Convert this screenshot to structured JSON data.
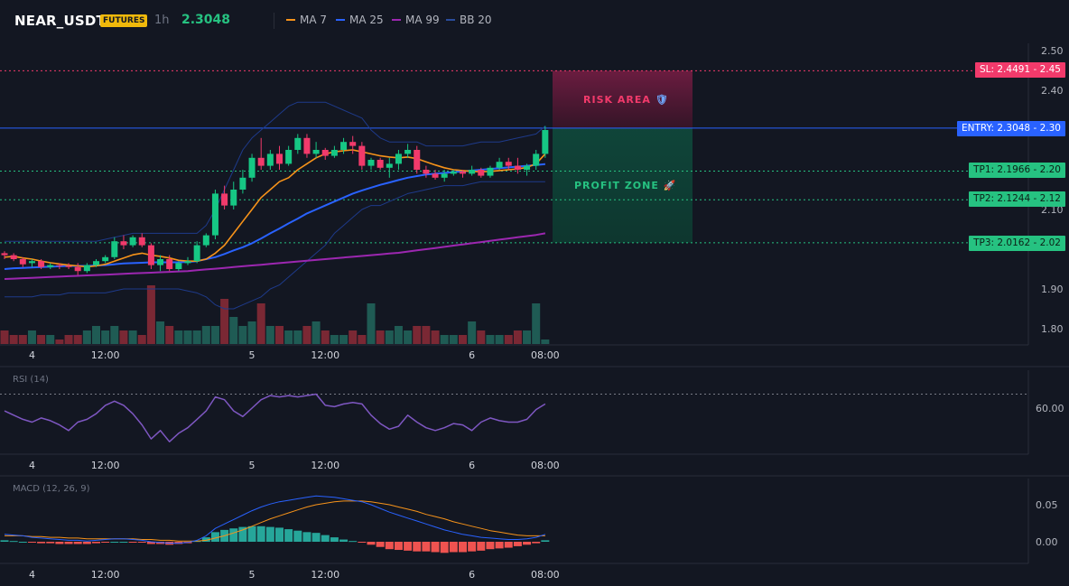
{
  "header": {
    "symbol": "NEAR_USDT",
    "badge": "FUTURES",
    "timeframe": "1h",
    "last_price": "2.3048",
    "indicators": [
      {
        "label": "MA 7",
        "color": "#f7931a"
      },
      {
        "label": "MA 25",
        "color": "#2962ff"
      },
      {
        "label": "MA 99",
        "color": "#9c27b0"
      },
      {
        "label": "BB 20",
        "color": "#1e3a8a"
      }
    ]
  },
  "levels": {
    "sl": {
      "label": "SL: 2.4491",
      "price": "2.45",
      "value": 2.4491,
      "color": "#f23a6b"
    },
    "entry": {
      "label": "ENTRY: 2.3048",
      "price": "2.30",
      "value": 2.3048,
      "color": "#2962ff"
    },
    "tp1": {
      "label": "TP1: 2.1966",
      "price": "2.20",
      "value": 2.1966,
      "color": "#26c281"
    },
    "tp2": {
      "label": "TP2: 2.1244",
      "price": "2.12",
      "value": 2.1244,
      "color": "#26c281"
    },
    "tp3": {
      "label": "TP3: 2.0162",
      "price": "2.02",
      "value": 2.0162,
      "color": "#26c281"
    }
  },
  "zones": {
    "risk": {
      "label": "RISK AREA",
      "icon": "shield-icon"
    },
    "profit": {
      "label": "PROFIT ZONE",
      "icon": "rocket-icon"
    }
  },
  "price_axis": {
    "ticks": [
      {
        "label": "2.50",
        "value": 2.5
      },
      {
        "label": "2.40",
        "value": 2.4
      },
      {
        "label": "2.10",
        "value": 2.1
      },
      {
        "label": "1.90",
        "value": 1.9
      },
      {
        "label": "1.80",
        "value": 1.8
      }
    ]
  },
  "time_axis": {
    "ticks": [
      {
        "label": "4",
        "hour": 3
      },
      {
        "label": "12:00",
        "hour": 11
      },
      {
        "label": "5",
        "hour": 27
      },
      {
        "label": "12:00",
        "hour": 35
      },
      {
        "label": "6",
        "hour": 51
      },
      {
        "label": "08:00",
        "hour": 59
      }
    ]
  },
  "rsi": {
    "title": "RSI (14)",
    "tick": {
      "label": "60.00",
      "value": 60
    },
    "overbought": 70
  },
  "macd": {
    "title": "MACD (12, 26, 9)",
    "ticks": [
      {
        "label": "0.05",
        "value": 0.05
      },
      {
        "label": "0.00",
        "value": 0
      }
    ]
  },
  "chart_data": {
    "type": "candlestick",
    "x_unit": "hour index",
    "candles": [
      [
        0,
        1.99,
        1.995,
        1.975,
        1.985
      ],
      [
        1,
        1.985,
        1.99,
        1.97,
        1.975
      ],
      [
        2,
        1.975,
        1.98,
        1.955,
        1.962
      ],
      [
        3,
        1.965,
        1.975,
        1.955,
        1.97
      ],
      [
        4,
        1.97,
        1.975,
        1.95,
        1.955
      ],
      [
        5,
        1.955,
        1.965,
        1.95,
        1.96
      ],
      [
        6,
        1.96,
        1.965,
        1.95,
        1.958
      ],
      [
        7,
        1.958,
        1.965,
        1.95,
        1.955
      ],
      [
        8,
        1.955,
        1.965,
        1.935,
        1.945
      ],
      [
        9,
        1.945,
        1.965,
        1.94,
        1.96
      ],
      [
        10,
        1.96,
        1.975,
        1.955,
        1.97
      ],
      [
        11,
        1.97,
        1.985,
        1.965,
        1.98
      ],
      [
        12,
        1.98,
        2.03,
        1.975,
        2.02
      ],
      [
        13,
        2.02,
        2.035,
        2.0,
        2.01
      ],
      [
        14,
        2.01,
        2.035,
        2.005,
        2.03
      ],
      [
        15,
        2.03,
        2.04,
        2.005,
        2.01
      ],
      [
        16,
        2.01,
        2.015,
        1.95,
        1.96
      ],
      [
        17,
        1.96,
        1.985,
        1.945,
        1.975
      ],
      [
        18,
        1.975,
        1.985,
        1.945,
        1.95
      ],
      [
        19,
        1.95,
        1.97,
        1.945,
        1.965
      ],
      [
        20,
        1.965,
        1.98,
        1.96,
        1.97
      ],
      [
        21,
        1.97,
        2.02,
        1.965,
        2.01
      ],
      [
        22,
        2.01,
        2.04,
        2.005,
        2.035
      ],
      [
        23,
        2.035,
        2.15,
        2.025,
        2.14
      ],
      [
        24,
        2.14,
        2.16,
        2.1,
        2.11
      ],
      [
        25,
        2.11,
        2.17,
        2.1,
        2.15
      ],
      [
        26,
        2.15,
        2.2,
        2.14,
        2.18
      ],
      [
        27,
        2.18,
        2.24,
        2.17,
        2.23
      ],
      [
        28,
        2.23,
        2.28,
        2.2,
        2.21
      ],
      [
        29,
        2.21,
        2.25,
        2.2,
        2.24
      ],
      [
        30,
        2.24,
        2.26,
        2.2,
        2.215
      ],
      [
        31,
        2.215,
        2.26,
        2.21,
        2.25
      ],
      [
        32,
        2.25,
        2.29,
        2.24,
        2.28
      ],
      [
        33,
        2.28,
        2.29,
        2.23,
        2.24
      ],
      [
        34,
        2.24,
        2.27,
        2.23,
        2.25
      ],
      [
        35,
        2.25,
        2.255,
        2.225,
        2.235
      ],
      [
        36,
        2.235,
        2.26,
        2.23,
        2.25
      ],
      [
        37,
        2.25,
        2.28,
        2.24,
        2.27
      ],
      [
        38,
        2.27,
        2.285,
        2.24,
        2.26
      ],
      [
        39,
        2.26,
        2.27,
        2.2,
        2.21
      ],
      [
        40,
        2.21,
        2.23,
        2.2,
        2.225
      ],
      [
        41,
        2.225,
        2.23,
        2.2,
        2.205
      ],
      [
        42,
        2.205,
        2.23,
        2.18,
        2.215
      ],
      [
        43,
        2.215,
        2.25,
        2.2,
        2.24
      ],
      [
        44,
        2.24,
        2.265,
        2.23,
        2.25
      ],
      [
        45,
        2.25,
        2.26,
        2.19,
        2.2
      ],
      [
        46,
        2.2,
        2.21,
        2.18,
        2.19
      ],
      [
        47,
        2.19,
        2.2,
        2.175,
        2.18
      ],
      [
        48,
        2.18,
        2.2,
        2.17,
        2.19
      ],
      [
        49,
        2.19,
        2.2,
        2.185,
        2.195
      ],
      [
        50,
        2.195,
        2.2,
        2.18,
        2.19
      ],
      [
        51,
        2.19,
        2.21,
        2.185,
        2.2
      ],
      [
        52,
        2.2,
        2.205,
        2.18,
        2.185
      ],
      [
        53,
        2.185,
        2.21,
        2.18,
        2.205
      ],
      [
        54,
        2.205,
        2.23,
        2.2,
        2.22
      ],
      [
        55,
        2.22,
        2.23,
        2.2,
        2.21
      ],
      [
        56,
        2.21,
        2.23,
        2.19,
        2.2
      ],
      [
        57,
        2.2,
        2.215,
        2.185,
        2.21
      ],
      [
        58,
        2.21,
        2.25,
        2.2,
        2.24
      ],
      [
        59,
        2.24,
        2.31,
        2.23,
        2.3
      ]
    ],
    "volume": [
      3,
      2,
      2,
      3,
      2,
      2,
      1,
      2,
      2,
      3,
      4,
      3,
      4,
      3,
      3,
      2,
      13,
      5,
      4,
      3,
      3,
      3,
      4,
      4,
      10,
      6,
      4,
      5,
      9,
      4,
      4,
      3,
      3,
      4,
      5,
      3,
      2,
      2,
      3,
      2,
      9,
      3,
      3,
      4,
      3,
      4,
      4,
      3,
      2,
      2,
      2,
      5,
      3,
      2,
      2,
      2,
      3,
      3,
      9,
      1
    ],
    "ma7": [
      1.98,
      1.982,
      1.978,
      1.975,
      1.97,
      1.966,
      1.963,
      1.96,
      1.958,
      1.956,
      1.958,
      1.962,
      1.97,
      1.978,
      1.986,
      1.99,
      1.985,
      1.982,
      1.978,
      1.972,
      1.97,
      1.97,
      1.975,
      1.99,
      2.01,
      2.04,
      2.07,
      2.1,
      2.13,
      2.15,
      2.17,
      2.18,
      2.2,
      2.215,
      2.23,
      2.24,
      2.245,
      2.248,
      2.25,
      2.245,
      2.24,
      2.235,
      2.232,
      2.23,
      2.232,
      2.228,
      2.22,
      2.212,
      2.205,
      2.2,
      2.198,
      2.196,
      2.195,
      2.196,
      2.198,
      2.2,
      2.202,
      2.206,
      2.215,
      2.24
    ],
    "ma25": [
      1.95,
      1.952,
      1.953,
      1.954,
      1.955,
      1.956,
      1.957,
      1.958,
      1.958,
      1.958,
      1.959,
      1.96,
      1.962,
      1.964,
      1.965,
      1.966,
      1.967,
      1.967,
      1.967,
      1.967,
      1.968,
      1.97,
      1.975,
      1.98,
      1.988,
      1.997,
      2.005,
      2.015,
      2.027,
      2.04,
      2.052,
      2.065,
      2.077,
      2.09,
      2.1,
      2.11,
      2.12,
      2.13,
      2.14,
      2.148,
      2.155,
      2.162,
      2.168,
      2.174,
      2.18,
      2.184,
      2.188,
      2.19,
      2.192,
      2.194,
      2.196,
      2.198,
      2.2,
      2.202,
      2.204,
      2.206,
      2.208,
      2.21,
      2.212,
      2.214
    ],
    "ma99": [
      1.925,
      1.926,
      1.927,
      1.928,
      1.929,
      1.93,
      1.931,
      1.932,
      1.933,
      1.934,
      1.935,
      1.936,
      1.937,
      1.938,
      1.939,
      1.94,
      1.941,
      1.942,
      1.943,
      1.944,
      1.945,
      1.947,
      1.949,
      1.951,
      1.953,
      1.955,
      1.957,
      1.959,
      1.961,
      1.963,
      1.965,
      1.967,
      1.969,
      1.971,
      1.973,
      1.975,
      1.977,
      1.979,
      1.981,
      1.983,
      1.985,
      1.987,
      1.989,
      1.991,
      1.994,
      1.997,
      2.0,
      2.003,
      2.006,
      2.009,
      2.012,
      2.015,
      2.018,
      2.021,
      2.024,
      2.027,
      2.03,
      2.033,
      2.036,
      2.04
    ],
    "bb_upper": [
      2.02,
      2.02,
      2.02,
      2.02,
      2.02,
      2.02,
      2.02,
      2.02,
      2.02,
      2.02,
      2.02,
      2.025,
      2.03,
      2.035,
      2.04,
      2.04,
      2.04,
      2.04,
      2.04,
      2.04,
      2.04,
      2.04,
      2.06,
      2.1,
      2.15,
      2.2,
      2.25,
      2.28,
      2.3,
      2.32,
      2.34,
      2.36,
      2.37,
      2.37,
      2.37,
      2.37,
      2.36,
      2.35,
      2.34,
      2.33,
      2.3,
      2.28,
      2.27,
      2.27,
      2.27,
      2.27,
      2.26,
      2.26,
      2.26,
      2.26,
      2.26,
      2.265,
      2.27,
      2.27,
      2.27,
      2.275,
      2.28,
      2.285,
      2.29,
      2.31
    ],
    "bb_lower": [
      1.88,
      1.88,
      1.88,
      1.88,
      1.885,
      1.885,
      1.885,
      1.89,
      1.89,
      1.89,
      1.89,
      1.89,
      1.895,
      1.9,
      1.9,
      1.9,
      1.9,
      1.9,
      1.9,
      1.9,
      1.895,
      1.89,
      1.88,
      1.86,
      1.85,
      1.85,
      1.86,
      1.87,
      1.88,
      1.9,
      1.91,
      1.93,
      1.95,
      1.97,
      1.99,
      2.01,
      2.04,
      2.06,
      2.08,
      2.1,
      2.11,
      2.11,
      2.12,
      2.13,
      2.14,
      2.145,
      2.15,
      2.155,
      2.16,
      2.16,
      2.16,
      2.165,
      2.17,
      2.17,
      2.17,
      2.17,
      2.17,
      2.17,
      2.17,
      2.17
    ],
    "rsi": [
      58,
      55,
      52,
      50,
      53,
      51,
      48,
      44,
      50,
      52,
      56,
      62,
      65,
      62,
      56,
      48,
      38,
      44,
      36,
      42,
      46,
      52,
      58,
      68,
      66,
      58,
      54,
      60,
      66,
      69,
      68,
      69,
      68,
      69,
      70,
      62,
      61,
      63,
      64,
      63,
      55,
      49,
      45,
      47,
      55,
      50,
      46,
      44,
      46,
      49,
      48,
      44,
      50,
      53,
      51,
      50,
      50,
      52,
      59,
      63
    ],
    "macd": [
      0.01,
      0.009,
      0.008,
      0.006,
      0.005,
      0.004,
      0.003,
      0.002,
      0.002,
      0.001,
      0.002,
      0.003,
      0.004,
      0.004,
      0.003,
      0.002,
      0.0,
      -0.001,
      -0.002,
      -0.002,
      -0.001,
      0.002,
      0.008,
      0.018,
      0.024,
      0.03,
      0.036,
      0.042,
      0.047,
      0.051,
      0.054,
      0.056,
      0.058,
      0.06,
      0.062,
      0.061,
      0.06,
      0.058,
      0.056,
      0.054,
      0.05,
      0.045,
      0.04,
      0.036,
      0.032,
      0.028,
      0.024,
      0.02,
      0.016,
      0.013,
      0.01,
      0.008,
      0.006,
      0.005,
      0.004,
      0.003,
      0.003,
      0.004,
      0.006,
      0.01
    ],
    "signal": [
      0.008,
      0.008,
      0.008,
      0.007,
      0.007,
      0.006,
      0.006,
      0.005,
      0.005,
      0.004,
      0.004,
      0.004,
      0.004,
      0.004,
      0.004,
      0.003,
      0.003,
      0.002,
      0.002,
      0.001,
      0.001,
      0.001,
      0.002,
      0.005,
      0.008,
      0.012,
      0.016,
      0.021,
      0.026,
      0.031,
      0.035,
      0.039,
      0.043,
      0.047,
      0.05,
      0.052,
      0.054,
      0.055,
      0.055,
      0.055,
      0.054,
      0.052,
      0.05,
      0.047,
      0.044,
      0.041,
      0.037,
      0.034,
      0.031,
      0.027,
      0.024,
      0.021,
      0.018,
      0.015,
      0.013,
      0.011,
      0.009,
      0.008,
      0.008,
      0.008
    ]
  }
}
